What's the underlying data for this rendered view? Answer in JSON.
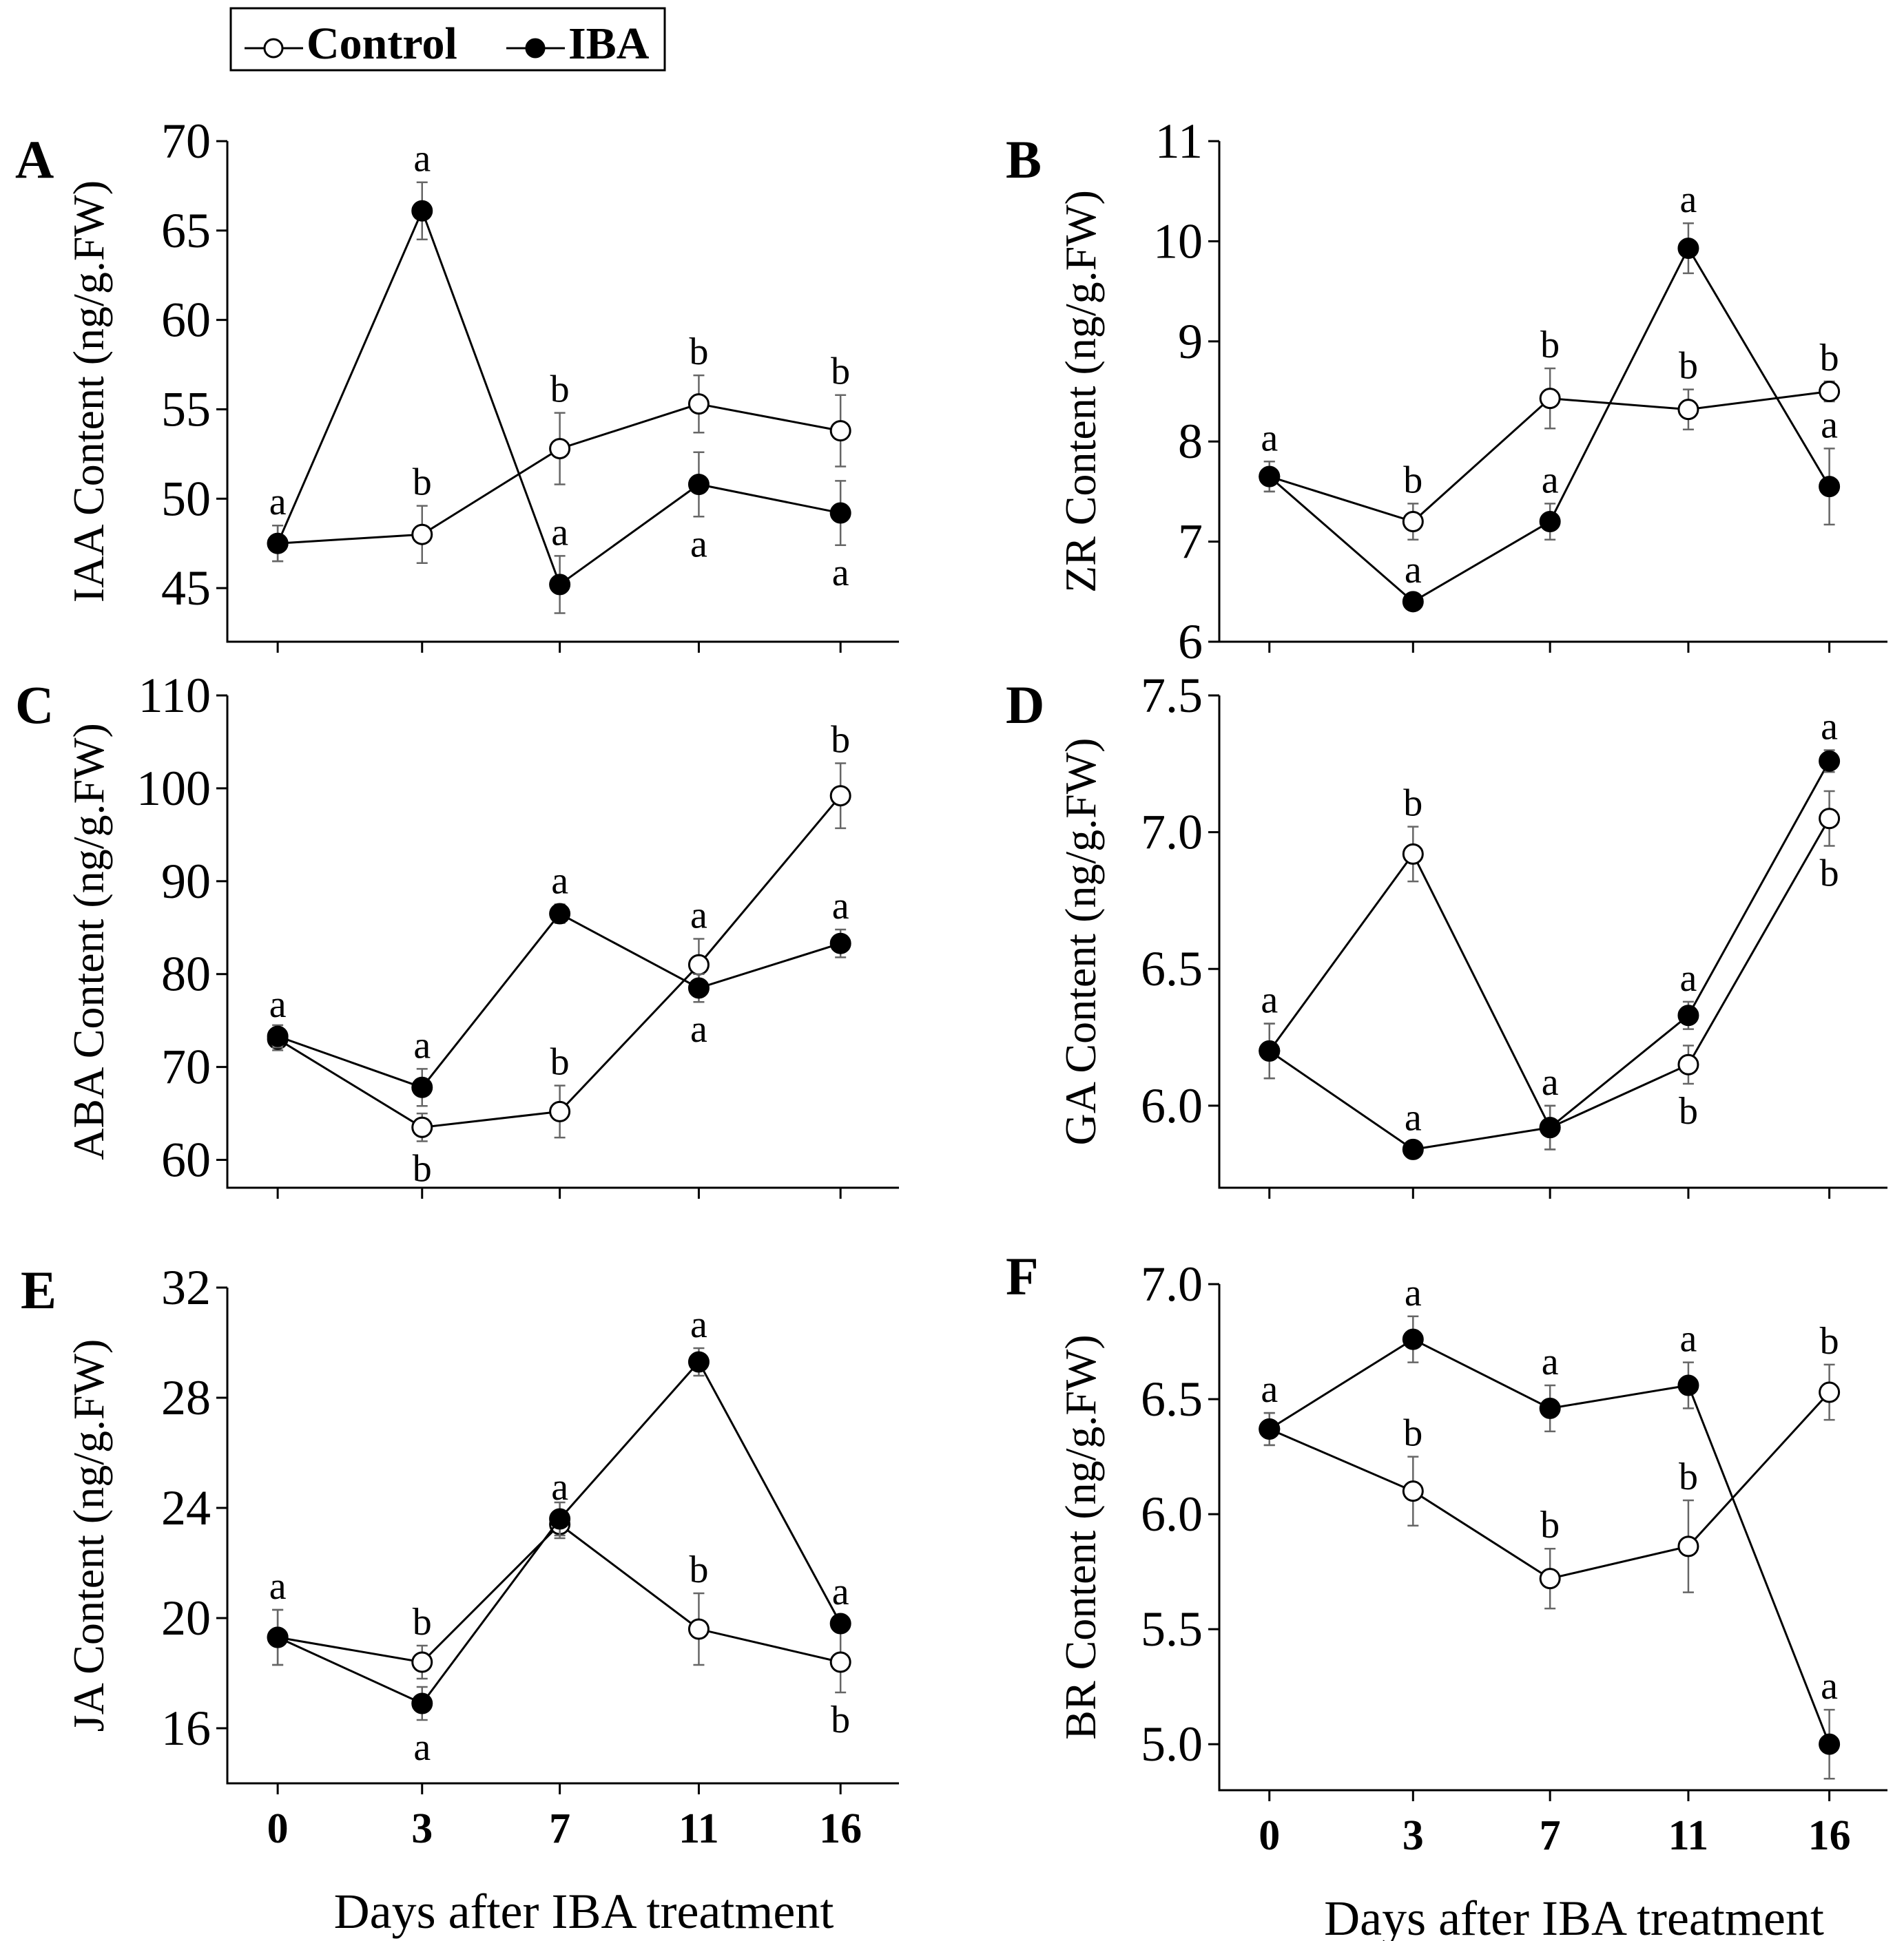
{
  "legend": {
    "items": [
      {
        "label": "Control",
        "marker": "open-circle"
      },
      {
        "label": "IBA",
        "marker": "filled-circle"
      }
    ]
  },
  "colors": {
    "line": "#000000",
    "error_bar": "#666666",
    "open_fill": "#ffffff",
    "filled": "#000000"
  },
  "x_axis_label": "Days after IBA treatment",
  "chart_data": [
    {
      "id": "A",
      "type": "line",
      "panel": "A",
      "ylabel": "IAA Content (ng/g.FW)",
      "categories": [
        "0",
        "3",
        "7",
        "11",
        "16"
      ],
      "ylim": [
        42,
        70
      ],
      "yticks": [
        45,
        50,
        55,
        60,
        65,
        70
      ],
      "ytick_decimals": 0,
      "show_xticklabels": false,
      "show_xlabel": false,
      "series": [
        {
          "name": "Control",
          "values": [
            47.5,
            48.0,
            52.8,
            55.3,
            53.8
          ],
          "errors": [
            1.0,
            1.6,
            2.0,
            1.6,
            2.0
          ],
          "labels": [
            "a",
            "b",
            "b",
            "b",
            "b"
          ],
          "label_pos": [
            "above",
            "above",
            "above",
            "above",
            "above"
          ]
        },
        {
          "name": "IBA",
          "values": [
            47.5,
            66.1,
            45.2,
            50.8,
            49.2
          ],
          "errors": [
            1.0,
            1.6,
            1.6,
            1.8,
            1.8
          ],
          "labels": [
            "",
            "a",
            "a",
            "a",
            "a"
          ],
          "label_pos": [
            "above",
            "above",
            "above",
            "below",
            "below"
          ]
        }
      ]
    },
    {
      "id": "B",
      "type": "line",
      "panel": "B",
      "ylabel": "ZR Content (ng/g.FW)",
      "categories": [
        "0",
        "3",
        "7",
        "11",
        "16"
      ],
      "ylim": [
        6,
        11
      ],
      "yticks": [
        6,
        7,
        8,
        9,
        10,
        11
      ],
      "ytick_decimals": 0,
      "show_xticklabels": false,
      "show_xlabel": false,
      "series": [
        {
          "name": "Control",
          "values": [
            7.65,
            7.2,
            8.43,
            8.32,
            8.5
          ],
          "errors": [
            0.15,
            0.18,
            0.3,
            0.2,
            0.1
          ],
          "labels": [
            "a",
            "b",
            "b",
            "b",
            "b"
          ],
          "label_pos": [
            "above",
            "above",
            "above",
            "above",
            "above"
          ]
        },
        {
          "name": "IBA",
          "values": [
            7.65,
            6.4,
            7.2,
            9.93,
            7.55
          ],
          "errors": [
            0.15,
            0.08,
            0.18,
            0.25,
            0.38
          ],
          "labels": [
            "",
            "a",
            "a",
            "a",
            "a"
          ],
          "label_pos": [
            "above",
            "above",
            "above",
            "above",
            "above"
          ]
        }
      ]
    },
    {
      "id": "C",
      "type": "line",
      "panel": "C",
      "ylabel": "ABA Content (ng/g.FW)",
      "categories": [
        "0",
        "3",
        "7",
        "11",
        "16"
      ],
      "ylim": [
        57,
        110
      ],
      "yticks": [
        60,
        70,
        80,
        90,
        100,
        110
      ],
      "ytick_decimals": 0,
      "show_xticklabels": false,
      "show_xlabel": false,
      "series": [
        {
          "name": "Control",
          "values": [
            73.0,
            63.5,
            65.2,
            81.0,
            99.2
          ],
          "errors": [
            1.2,
            1.5,
            2.8,
            2.8,
            3.5
          ],
          "labels": [
            "a",
            "b",
            "b",
            "a",
            "b"
          ],
          "label_pos": [
            "above",
            "below",
            "above",
            "above",
            "above"
          ]
        },
        {
          "name": "IBA",
          "values": [
            73.3,
            67.8,
            86.5,
            78.5,
            83.3
          ],
          "errors": [
            1.2,
            2.0,
            1.0,
            1.5,
            1.5
          ],
          "labels": [
            "",
            "a",
            "a",
            "a",
            "a"
          ],
          "label_pos": [
            "above",
            "above",
            "above",
            "below",
            "above"
          ]
        }
      ]
    },
    {
      "id": "D",
      "type": "line",
      "panel": "D",
      "ylabel": "GA Content (ng/g.FW)",
      "categories": [
        "0",
        "3",
        "7",
        "11",
        "16"
      ],
      "ylim": [
        5.7,
        7.5
      ],
      "yticks": [
        6.0,
        6.5,
        7.0,
        7.5
      ],
      "ytick_decimals": 1,
      "show_xticklabels": false,
      "show_xlabel": false,
      "series": [
        {
          "name": "Control",
          "values": [
            6.2,
            6.92,
            5.92,
            6.15,
            7.05
          ],
          "errors": [
            0.1,
            0.1,
            0.08,
            0.07,
            0.1
          ],
          "labels": [
            "a",
            "b",
            "a",
            "b",
            "b"
          ],
          "label_pos": [
            "above",
            "above",
            "above",
            "below",
            "below"
          ]
        },
        {
          "name": "IBA",
          "values": [
            6.2,
            5.84,
            5.92,
            6.33,
            7.26
          ],
          "errors": [
            0.1,
            0.03,
            0.08,
            0.05,
            0.04
          ],
          "labels": [
            "",
            "a",
            "",
            "a",
            "a"
          ],
          "label_pos": [
            "above",
            "above",
            "above",
            "above",
            "above"
          ]
        }
      ]
    },
    {
      "id": "E",
      "type": "line",
      "panel": "E",
      "ylabel": "JA Content (ng/g.FW)",
      "categories": [
        "0",
        "3",
        "7",
        "11",
        "16"
      ],
      "ylim": [
        14,
        32
      ],
      "yticks": [
        16,
        20,
        24,
        28,
        32
      ],
      "ytick_decimals": 0,
      "show_xticklabels": true,
      "show_xlabel": true,
      "series": [
        {
          "name": "Control",
          "values": [
            19.3,
            18.4,
            23.4,
            19.6,
            18.4
          ],
          "errors": [
            1.0,
            0.6,
            0.5,
            1.3,
            1.1
          ],
          "labels": [
            "a",
            "b",
            "a",
            "b",
            "b"
          ],
          "label_pos": [
            "above",
            "above",
            "above",
            "above",
            "below"
          ]
        },
        {
          "name": "IBA",
          "values": [
            19.3,
            16.9,
            23.6,
            29.3,
            19.8
          ],
          "errors": [
            1.0,
            0.6,
            0.6,
            0.5,
            0.3
          ],
          "labels": [
            "",
            "a",
            "",
            "a",
            "a"
          ],
          "label_pos": [
            "above",
            "below",
            "above",
            "above",
            "above"
          ]
        }
      ]
    },
    {
      "id": "F",
      "type": "line",
      "panel": "F",
      "ylabel": "BR Content (ng/g.FW)",
      "categories": [
        "0",
        "3",
        "7",
        "11",
        "16"
      ],
      "ylim": [
        4.8,
        7.0
      ],
      "yticks": [
        5.0,
        5.5,
        6.0,
        6.5,
        7.0
      ],
      "ytick_decimals": 1,
      "show_xticklabels": true,
      "show_xlabel": true,
      "series": [
        {
          "name": "Control",
          "values": [
            6.37,
            6.1,
            5.72,
            5.86,
            6.53
          ],
          "errors": [
            0.07,
            0.15,
            0.13,
            0.2,
            0.12
          ],
          "labels": [
            "a",
            "b",
            "b",
            "b",
            "b"
          ],
          "label_pos": [
            "above",
            "above",
            "above",
            "above",
            "above"
          ]
        },
        {
          "name": "IBA",
          "values": [
            6.37,
            6.76,
            6.46,
            6.56,
            5.0
          ],
          "errors": [
            0.07,
            0.1,
            0.1,
            0.1,
            0.15
          ],
          "labels": [
            "",
            "a",
            "a",
            "a",
            "a"
          ],
          "label_pos": [
            "above",
            "above",
            "above",
            "above",
            "above"
          ]
        }
      ]
    }
  ]
}
